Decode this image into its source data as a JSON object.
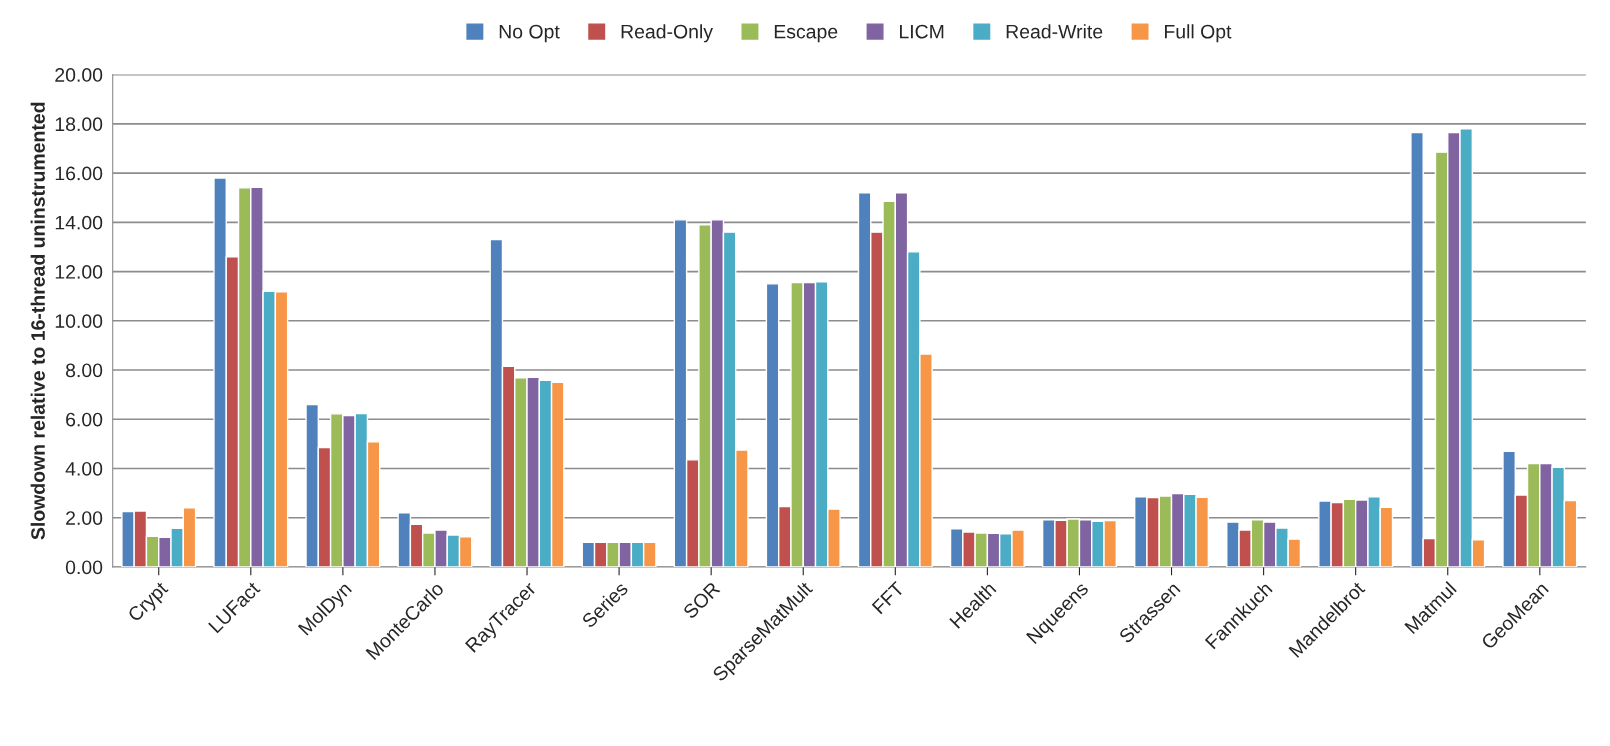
{
  "chart_data": {
    "type": "bar",
    "ylabel": "Slowdown relative to 16-thread uninstrumented",
    "categories": [
      "Crypt",
      "LUFact",
      "MolDyn",
      "MonteCarlo",
      "RayTracer",
      "Series",
      "SOR",
      "SparseMatMult",
      "FFT",
      "Health",
      "Nqueens",
      "Strassen",
      "Fannkuch",
      "Mandelbrot",
      "Matmul",
      "GeoMean"
    ],
    "series": [
      {
        "name": "No Opt",
        "color": "#4f81bd",
        "values": [
          2.25,
          15.8,
          6.6,
          2.2,
          13.3,
          1.0,
          14.1,
          11.5,
          15.2,
          1.55,
          1.92,
          2.85,
          1.82,
          2.68,
          17.65,
          4.7
        ]
      },
      {
        "name": "Read-Only",
        "color": "#c0504d",
        "values": [
          2.27,
          12.6,
          4.85,
          1.73,
          8.15,
          1.0,
          4.35,
          2.45,
          13.6,
          1.42,
          1.9,
          2.82,
          1.5,
          2.62,
          1.15,
          2.92
        ]
      },
      {
        "name": "Escape",
        "color": "#9bbb59",
        "values": [
          1.25,
          15.4,
          6.22,
          1.38,
          7.68,
          1.0,
          13.9,
          11.55,
          14.85,
          1.38,
          1.95,
          2.88,
          1.92,
          2.75,
          16.85,
          4.2
        ]
      },
      {
        "name": "LICM",
        "color": "#8064a2",
        "values": [
          1.2,
          15.42,
          6.15,
          1.5,
          7.7,
          1.0,
          14.1,
          11.55,
          15.2,
          1.37,
          1.92,
          2.98,
          1.82,
          2.72,
          17.65,
          4.2
        ]
      },
      {
        "name": "Read-Write",
        "color": "#4bacc6",
        "values": [
          1.57,
          11.2,
          6.23,
          1.3,
          7.58,
          1.0,
          13.6,
          11.58,
          12.8,
          1.35,
          1.85,
          2.95,
          1.58,
          2.85,
          17.8,
          4.05
        ]
      },
      {
        "name": "Full Opt",
        "color": "#f79646",
        "values": [
          2.4,
          11.18,
          5.08,
          1.22,
          7.5,
          1.0,
          4.75,
          2.35,
          8.65,
          1.5,
          1.88,
          2.83,
          1.13,
          2.42,
          1.1,
          2.7
        ]
      }
    ],
    "ylim": [
      0,
      20
    ],
    "yticks": [
      {
        "value": 0,
        "label": "0.00"
      },
      {
        "value": 2,
        "label": "2.00"
      },
      {
        "value": 4,
        "label": "4.00"
      },
      {
        "value": 6,
        "label": "6.00"
      },
      {
        "value": 8,
        "label": "8.00"
      },
      {
        "value": 10,
        "label": "10.00"
      },
      {
        "value": 12,
        "label": "12.00"
      },
      {
        "value": 14,
        "label": "14.00"
      },
      {
        "value": 16,
        "label": "16.00"
      },
      {
        "value": 18,
        "label": "18.00"
      },
      {
        "value": 20,
        "label": "20.00"
      }
    ],
    "grid": "y",
    "legend": "top"
  }
}
